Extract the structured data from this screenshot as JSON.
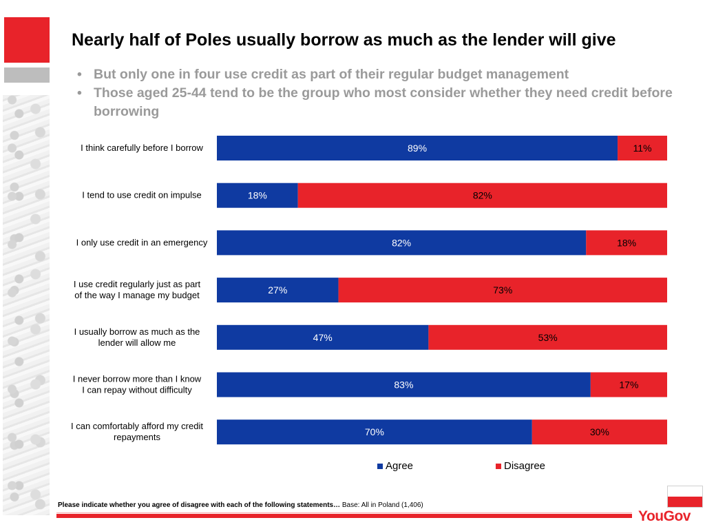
{
  "title": "Nearly half of Poles usually borrow as much as the lender will give",
  "bullets": [
    "But only one in four use credit as part of their regular budget management",
    "Those aged 25-44 tend to be the group who most consider whether they need credit before borrowing"
  ],
  "chart_data": {
    "type": "bar",
    "orientation": "horizontal",
    "stacked": true,
    "categories": [
      [
        "I think carefully before I borrow"
      ],
      [
        "I tend to use credit on impulse"
      ],
      [
        "I only use credit in an emergency"
      ],
      [
        "I use credit regularly just as part",
        "of the way I manage my budget"
      ],
      [
        "I usually borrow as much as the",
        "lender will allow me"
      ],
      [
        "I never  borrow more than I know",
        "I can repay without difficulty"
      ],
      [
        "I can comfortably afford my credit",
        "repayments"
      ]
    ],
    "series": [
      {
        "name": "Agree",
        "color": "#0f3aa1",
        "values": [
          89,
          18,
          82,
          27,
          47,
          83,
          70
        ],
        "labels": [
          "89%",
          "18%",
          "82%",
          "27%",
          "47%",
          "83%",
          "70%"
        ]
      },
      {
        "name": "Disagree",
        "color": "#e8232a",
        "values": [
          11,
          82,
          18,
          73,
          53,
          17,
          30
        ],
        "labels": [
          "11%",
          "82%",
          "18%",
          "73%",
          "53%",
          "17%",
          "30%"
        ]
      }
    ],
    "xlim": [
      0,
      100
    ],
    "legend_position": "bottom"
  },
  "footnote": {
    "question": "Please indicate whether you agree of disagree with each of the following statements…",
    "base": "Base: All in Poland (1,406)"
  },
  "brand": "YouGov"
}
